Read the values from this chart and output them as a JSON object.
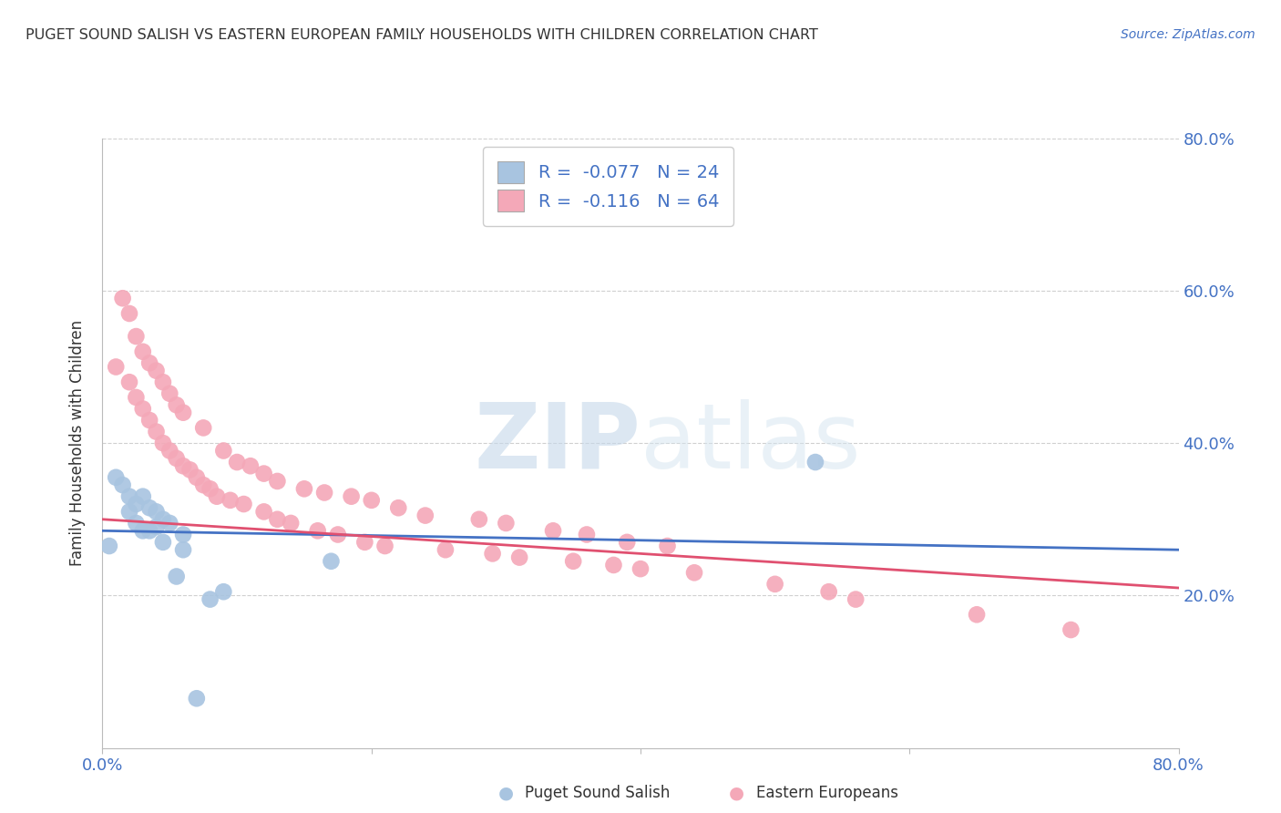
{
  "title": "PUGET SOUND SALISH VS EASTERN EUROPEAN FAMILY HOUSEHOLDS WITH CHILDREN CORRELATION CHART",
  "source": "Source: ZipAtlas.com",
  "ylabel": "Family Households with Children",
  "xmin": 0.0,
  "xmax": 0.8,
  "ymin": 0.0,
  "ymax": 0.8,
  "yticks": [
    0.2,
    0.4,
    0.6,
    0.8
  ],
  "ytick_labels": [
    "20.0%",
    "40.0%",
    "60.0%",
    "80.0%"
  ],
  "legend_label1": "Puget Sound Salish",
  "legend_label2": "Eastern Europeans",
  "R1": -0.077,
  "N1": 24,
  "R2": -0.116,
  "N2": 64,
  "color1": "#a8c4e0",
  "color2": "#f4a8b8",
  "line_color1": "#4472c4",
  "line_color2": "#e05070",
  "watermark_zip": "ZIP",
  "watermark_atlas": "atlas",
  "puget_x": [
    0.005,
    0.01,
    0.015,
    0.02,
    0.02,
    0.025,
    0.025,
    0.03,
    0.03,
    0.035,
    0.035,
    0.04,
    0.04,
    0.045,
    0.045,
    0.05,
    0.055,
    0.06,
    0.06,
    0.07,
    0.08,
    0.09,
    0.17,
    0.53
  ],
  "puget_y": [
    0.265,
    0.355,
    0.345,
    0.31,
    0.33,
    0.295,
    0.32,
    0.285,
    0.33,
    0.285,
    0.315,
    0.29,
    0.31,
    0.27,
    0.3,
    0.295,
    0.225,
    0.26,
    0.28,
    0.065,
    0.195,
    0.205,
    0.245,
    0.375
  ],
  "eastern_x": [
    0.01,
    0.015,
    0.02,
    0.02,
    0.025,
    0.025,
    0.03,
    0.03,
    0.035,
    0.035,
    0.04,
    0.04,
    0.045,
    0.045,
    0.05,
    0.05,
    0.055,
    0.055,
    0.06,
    0.06,
    0.065,
    0.07,
    0.075,
    0.075,
    0.08,
    0.085,
    0.09,
    0.095,
    0.1,
    0.105,
    0.11,
    0.12,
    0.12,
    0.13,
    0.13,
    0.14,
    0.15,
    0.16,
    0.165,
    0.175,
    0.185,
    0.195,
    0.2,
    0.21,
    0.22,
    0.24,
    0.255,
    0.28,
    0.29,
    0.3,
    0.31,
    0.335,
    0.35,
    0.36,
    0.38,
    0.39,
    0.4,
    0.42,
    0.44,
    0.5,
    0.54,
    0.56,
    0.65,
    0.72
  ],
  "eastern_y": [
    0.5,
    0.59,
    0.48,
    0.57,
    0.46,
    0.54,
    0.445,
    0.52,
    0.43,
    0.505,
    0.415,
    0.495,
    0.4,
    0.48,
    0.39,
    0.465,
    0.38,
    0.45,
    0.37,
    0.44,
    0.365,
    0.355,
    0.345,
    0.42,
    0.34,
    0.33,
    0.39,
    0.325,
    0.375,
    0.32,
    0.37,
    0.31,
    0.36,
    0.3,
    0.35,
    0.295,
    0.34,
    0.285,
    0.335,
    0.28,
    0.33,
    0.27,
    0.325,
    0.265,
    0.315,
    0.305,
    0.26,
    0.3,
    0.255,
    0.295,
    0.25,
    0.285,
    0.245,
    0.28,
    0.24,
    0.27,
    0.235,
    0.265,
    0.23,
    0.215,
    0.205,
    0.195,
    0.175,
    0.155
  ],
  "trendline_puget_x0": 0.0,
  "trendline_puget_y0": 0.285,
  "trendline_puget_x1": 0.8,
  "trendline_puget_y1": 0.26,
  "trendline_eastern_x0": 0.0,
  "trendline_eastern_y0": 0.3,
  "trendline_eastern_x1": 0.8,
  "trendline_eastern_y1": 0.21
}
